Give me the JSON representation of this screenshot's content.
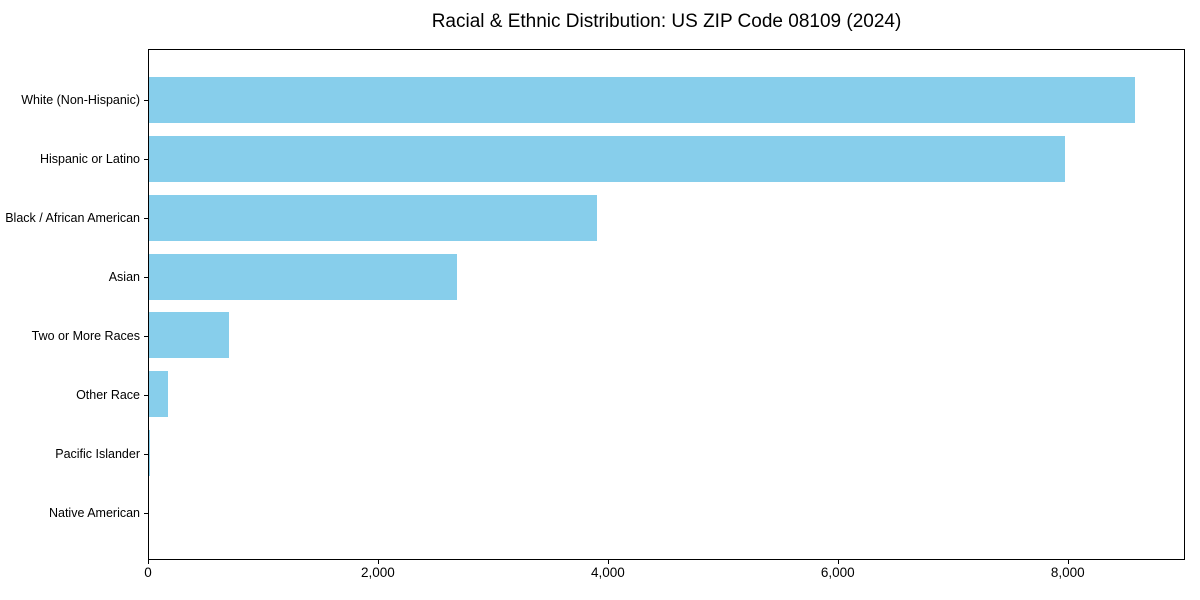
{
  "chart_data": {
    "type": "bar",
    "orientation": "horizontal",
    "title": "Racial & Ethnic Distribution: US ZIP Code 08109 (2024)",
    "categories": [
      "White (Non-Hispanic)",
      "Hispanic or Latino",
      "Black / African American",
      "Asian",
      "Two or More Races",
      "Other Race",
      "Pacific Islander",
      "Native American"
    ],
    "values": [
      8590,
      7980,
      3900,
      2680,
      700,
      165,
      10,
      0
    ],
    "xlabel": "",
    "ylabel": "",
    "xlim": [
      0,
      9020
    ],
    "x_ticks": [
      0,
      2000,
      4000,
      6000,
      8000
    ],
    "x_tick_labels": [
      "0",
      "2,000",
      "4,000",
      "6,000",
      "8,000"
    ],
    "bar_color": "#87CEEB",
    "spine_color": "#000000",
    "grid": false,
    "legend": "none"
  }
}
